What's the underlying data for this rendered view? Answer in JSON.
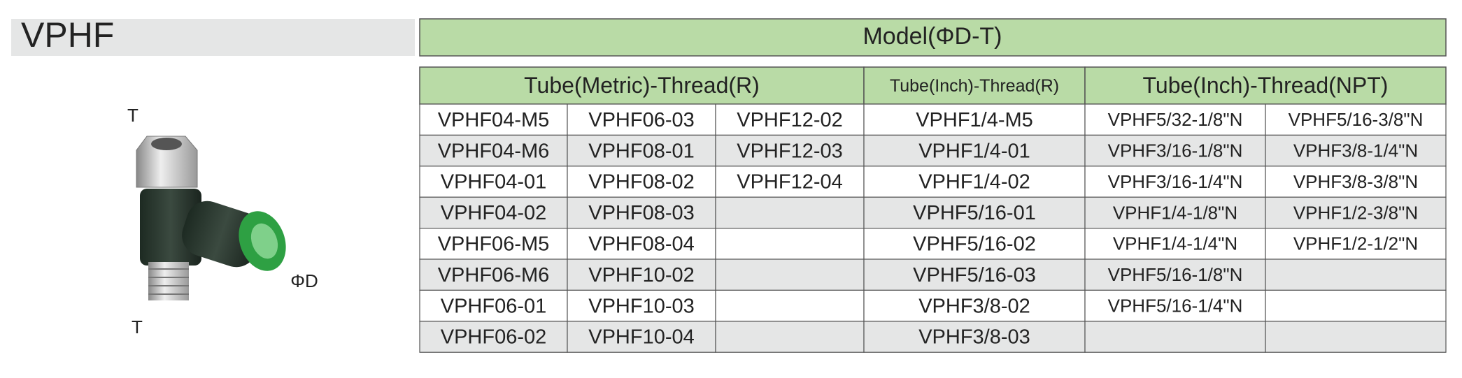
{
  "header": {
    "title": "VPHF",
    "model_label": "Model(ΦD-T)"
  },
  "figure": {
    "labels": [
      "T",
      "T",
      "ΦD"
    ]
  },
  "table": {
    "groups": [
      {
        "label": "Tube(Metric)-Thread(R)",
        "span": 3
      },
      {
        "label": "Tube(Inch)-Thread(R)",
        "span": 1
      },
      {
        "label": "Tube(Inch)-Thread(NPT)",
        "span": 2
      }
    ],
    "rows": [
      [
        "VPHF04-M5",
        "VPHF06-03",
        "VPHF12-02",
        "VPHF1/4-M5",
        "VPHF5/32-1/8\"N",
        "VPHF5/16-3/8\"N"
      ],
      [
        "VPHF04-M6",
        "VPHF08-01",
        "VPHF12-03",
        "VPHF1/4-01",
        "VPHF3/16-1/8\"N",
        "VPHF3/8-1/4\"N"
      ],
      [
        "VPHF04-01",
        "VPHF08-02",
        "VPHF12-04",
        "VPHF1/4-02",
        "VPHF3/16-1/4\"N",
        "VPHF3/8-3/8\"N"
      ],
      [
        "VPHF04-02",
        "VPHF08-03",
        null,
        "VPHF5/16-01",
        "VPHF1/4-1/8\"N",
        "VPHF1/2-3/8\"N"
      ],
      [
        "VPHF06-M5",
        "VPHF08-04",
        null,
        "VPHF5/16-02",
        "VPHF1/4-1/4\"N",
        "VPHF1/2-1/2\"N"
      ],
      [
        "VPHF06-M6",
        "VPHF10-02",
        null,
        "VPHF5/16-03",
        "VPHF5/16-1/8\"N",
        null
      ],
      [
        "VPHF06-01",
        "VPHF10-03",
        null,
        "VPHF3/8-02",
        "VPHF5/16-1/4\"N",
        null
      ],
      [
        "VPHF06-02",
        "VPHF10-04",
        null,
        "VPHF3/8-03",
        null,
        null
      ]
    ]
  }
}
